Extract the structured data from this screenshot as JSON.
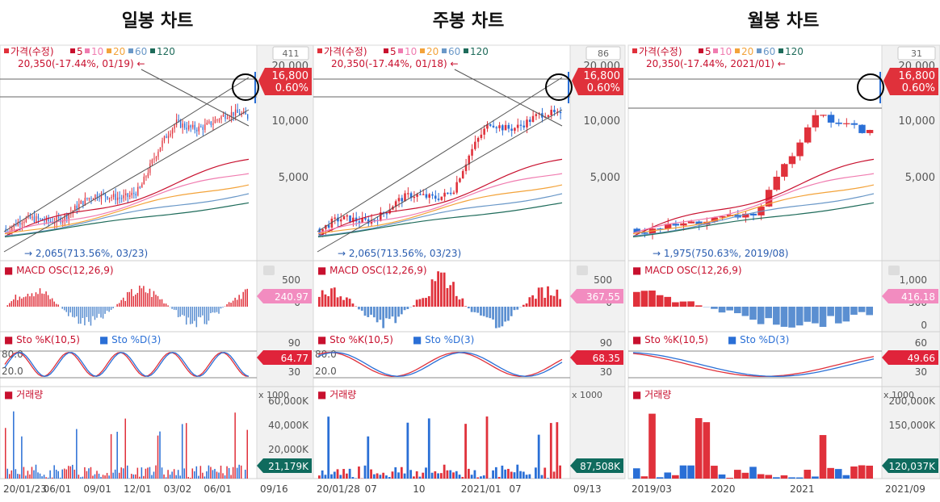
{
  "panels": [
    {
      "heading": "일봉 차트",
      "top_right_count": "411",
      "legend": {
        "price": "가격(수정)",
        "ma": [
          "5",
          "10",
          "20",
          "60",
          "120"
        ]
      },
      "max_label": "20,350(-17.44%, 01/19)",
      "min_label": "2,065(713.56%, 03/23)",
      "price_badge": {
        "value": "16,800",
        "change": "0.60%"
      },
      "y_ticks": [
        "20,000",
        "10,000",
        "5,000"
      ],
      "macd": {
        "title": "MACD OSC(12,26,9)",
        "ticks": [
          "500",
          "0"
        ],
        "badge": "240.97"
      },
      "sto": {
        "title_k": "Sto %K(10,5)",
        "title_d": "Sto %D(3)",
        "ticks": [
          "90",
          "30"
        ],
        "lines": [
          "80.0",
          "20.0"
        ],
        "badge": "64.77"
      },
      "volume": {
        "title": "거래량",
        "unit": "x 1000",
        "ticks": [
          "60,000K",
          "40,000K",
          "20,000K"
        ],
        "badge": "21,179K"
      },
      "x_ticks": [
        "20/01/23",
        "06/01",
        "09/01",
        "12/01",
        "03/02",
        "06/01"
      ],
      "end_date": "09/16"
    },
    {
      "heading": "주봉 차트",
      "top_right_count": "86",
      "legend": {
        "price": "가격(수정)",
        "ma": [
          "5",
          "10",
          "20",
          "60",
          "120"
        ]
      },
      "max_label": "20,350(-17.44%, 01/18)",
      "min_label": "2,065(713.56%, 03/23)",
      "price_badge": {
        "value": "16,800",
        "change": "0.60%"
      },
      "y_ticks": [
        "20,000",
        "10,000",
        "5,000"
      ],
      "macd": {
        "title": "MACD OSC(12,26,9)",
        "ticks": [
          "500",
          "0"
        ],
        "badge": "367.55"
      },
      "sto": {
        "title_k": "Sto %K(10,5)",
        "title_d": "Sto %D(3)",
        "ticks": [
          "90",
          "30"
        ],
        "lines": [
          "80.0",
          "20.0"
        ],
        "badge": "68.35"
      },
      "volume": {
        "title": "거래량",
        "unit": "x 1000",
        "ticks": [],
        "badge": "87,508K"
      },
      "x_ticks": [
        "20/01/28",
        "07",
        "10",
        "2021/01",
        "07"
      ],
      "end_date": "09/13"
    },
    {
      "heading": "월봉 차트",
      "top_right_count": "31",
      "legend": {
        "price": "가격(수정)",
        "ma": [
          "5",
          "10",
          "20",
          "60",
          "120"
        ]
      },
      "max_label": "20,350(-17.44%, 2021/01)",
      "min_label": "1,975(750.63%, 2019/08)",
      "price_badge": {
        "value": "16,800",
        "change": "0.60%"
      },
      "y_ticks": [
        "20,000",
        "10,000",
        "5,000"
      ],
      "macd": {
        "title": "MACD OSC(12,26,9)",
        "ticks": [
          "1,000",
          "500",
          "0"
        ],
        "badge": "416.18"
      },
      "sto": {
        "title_k": "Sto %K(10,5)",
        "title_d": "Sto %D(3)",
        "ticks": [
          "60",
          "30"
        ],
        "lines": [],
        "badge": "49.66"
      },
      "volume": {
        "title": "거래량",
        "unit": "x 1000",
        "ticks": [
          "200,000K",
          "150,000K"
        ],
        "badge": "120,037K"
      },
      "x_ticks": [
        "2019/03",
        "2020",
        "2021"
      ],
      "end_date": "2021/09"
    }
  ],
  "colors": {
    "up": "#e0313b",
    "down": "#2a6fd6",
    "ma5": "#c8102e",
    "ma10": "#f07cb0",
    "ma20": "#f3a33a",
    "ma60": "#6a98c8",
    "ma120": "#1e6b5a",
    "macd_badge": "#f28cc0",
    "sto_badge": "#e0233a",
    "vol_badge": "#0f6b5e"
  }
}
